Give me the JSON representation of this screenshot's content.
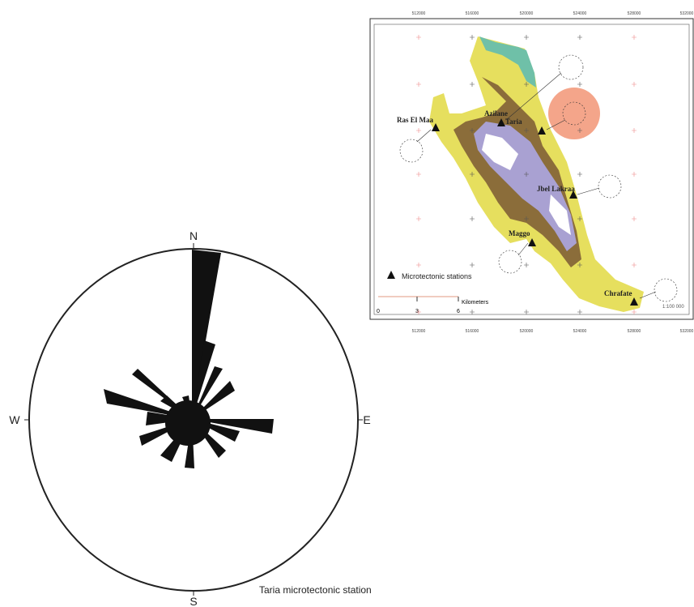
{
  "rose": {
    "north": "N",
    "east": "E",
    "south": "S",
    "west": "W",
    "caption": "Taria microtectonic station"
  },
  "map": {
    "coords_top": [
      "512000",
      "516000",
      "520000",
      "524000",
      "528000",
      "532000"
    ],
    "coords_bottom": [
      "512000",
      "516000",
      "520000",
      "524000",
      "528000",
      "532000"
    ],
    "stations": [
      "Ras El Maa",
      "Azilane",
      "Taria",
      "Jbel Lakraa",
      "Maggo",
      "Chrafate"
    ],
    "legend": "Microtectonic stations",
    "scale": {
      "ticks": [
        "0",
        "3",
        "6"
      ],
      "unit": "Kilometers"
    },
    "ratio": "1:100 000"
  }
}
